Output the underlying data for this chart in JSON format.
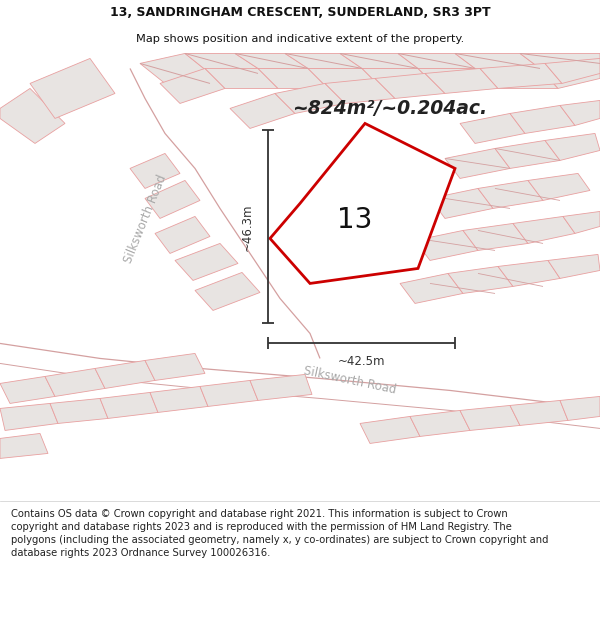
{
  "title_line1": "13, SANDRINGHAM CRESCENT, SUNDERLAND, SR3 3PT",
  "title_line2": "Map shows position and indicative extent of the property.",
  "area_label": "~824m²/~0.204ac.",
  "property_number": "13",
  "dim_vertical": "~46.3m",
  "dim_horizontal": "~42.5m",
  "road_label_left": "Silksworth Road",
  "road_label_bottom": "Silksworth Road",
  "footer_text": "Contains OS data © Crown copyright and database right 2021. This information is subject to Crown copyright and database rights 2023 and is reproduced with the permission of HM Land Registry. The polygons (including the associated geometry, namely x, y co-ordinates) are subject to Crown copyright and database rights 2023 Ordnance Survey 100026316.",
  "bg_color": "#ffffff",
  "map_bg": "#f7f3f2",
  "building_fill": "#e8e4e2",
  "building_edge": "#e8a0a0",
  "road_fill": "#ffffff",
  "road_edge": "#d4a0a0",
  "property_edge": "#cc0000",
  "property_fill": "#ffffff",
  "dim_color": "#333333",
  "text_color": "#111111",
  "area_text_color": "#222222",
  "road_text_color": "#aaaaaa",
  "footer_fontsize": 7.2,
  "title_fontsize": 9.0,
  "subtitle_fontsize": 8.2,
  "number_fontsize": 20,
  "area_fontsize": 13.5,
  "dim_fontsize": 8.5,
  "road_fontsize": 8.5
}
